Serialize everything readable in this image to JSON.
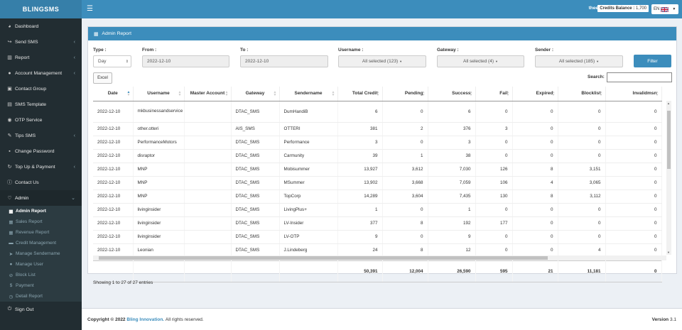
{
  "brand": "BLINGSMS",
  "sidebar": {
    "items": [
      {
        "label": "Dashboard",
        "icon": "dashboard-icon",
        "glyph": "◕",
        "chevron": false
      },
      {
        "label": "Send SMS",
        "icon": "share-icon",
        "glyph": "↪",
        "chevron": true
      },
      {
        "label": "Report",
        "icon": "bar-chart-icon",
        "glyph": "▥",
        "chevron": true
      },
      {
        "label": "Account Management",
        "icon": "user-icon",
        "glyph": "●",
        "chevron": true
      },
      {
        "label": "Contact Group",
        "icon": "address-book-icon",
        "glyph": "▣",
        "chevron": false
      },
      {
        "label": "SMS Template",
        "icon": "template-icon",
        "glyph": "▤",
        "chevron": false
      },
      {
        "label": "OTP Service",
        "icon": "otp-icon",
        "glyph": "◉",
        "chevron": false
      },
      {
        "label": "Tips SMS",
        "icon": "tips-icon",
        "glyph": "✎",
        "chevron": true
      },
      {
        "label": "Change Password",
        "icon": "lock-icon",
        "glyph": "▪",
        "chevron": false
      },
      {
        "label": "Top Up & Payment",
        "icon": "topup-icon",
        "glyph": "↻",
        "chevron": true
      },
      {
        "label": "Contact Us",
        "icon": "info-icon",
        "glyph": "ⓘ",
        "chevron": false
      },
      {
        "label": "Admin",
        "icon": "heart-icon",
        "glyph": "♡",
        "chevron": true
      }
    ],
    "admin_sub": [
      {
        "label": "Admin Report",
        "icon": "table-icon",
        "glyph": "▦"
      },
      {
        "label": "Sales Report",
        "icon": "table-icon",
        "glyph": "▦"
      },
      {
        "label": "Revenue Report",
        "icon": "table-icon",
        "glyph": "▦"
      },
      {
        "label": "Credit Management",
        "icon": "credit-card-icon",
        "glyph": "▬"
      },
      {
        "label": "Manage Sendername",
        "icon": "send-icon",
        "glyph": "➤"
      },
      {
        "label": "Manage User",
        "icon": "user-icon",
        "glyph": "●"
      },
      {
        "label": "Block List",
        "icon": "block-icon",
        "glyph": "⊘"
      },
      {
        "label": "Payment",
        "icon": "dollar-icon",
        "glyph": "$"
      },
      {
        "label": "Detail Report",
        "icon": "clock-icon",
        "glyph": "◷"
      }
    ],
    "signout": {
      "label": "Sign Out",
      "icon": "power-icon",
      "glyph": "⏻"
    }
  },
  "topbar": {
    "user": "thee",
    "credits_label": "Credits Balance :",
    "credits_value": "1,700",
    "lang": "EN"
  },
  "panel": {
    "title": "Admin Report"
  },
  "filters": {
    "type": {
      "label": "Type :",
      "value": "Day"
    },
    "from": {
      "label": "From :",
      "value": "2022-12-10"
    },
    "to": {
      "label": "To :",
      "value": "2022-12-10"
    },
    "username": {
      "label": "Username :",
      "value": "All selected (123)"
    },
    "gateway": {
      "label": "Gateway :",
      "value": "All selected (4)"
    },
    "sender": {
      "label": "Sender :",
      "value": "All selected (185)"
    },
    "filter_button": "Filter"
  },
  "excel_button": "Excel",
  "search_label": "Search:",
  "table": {
    "columns": [
      "Date",
      "Username",
      "Master Account",
      "Gateway",
      "Sendername",
      "Total Credit",
      "Pending",
      "Success",
      "Fail",
      "Expired",
      "Blocklist",
      "Invalidmsn"
    ],
    "rows": [
      [
        "2022-12-10",
        "mkbusinessandservice",
        "",
        "DTAC_SMS",
        "DumHandiB",
        "6",
        "0",
        "6",
        "0",
        "0",
        "0",
        "0"
      ],
      [
        "2022-12-10",
        "other.otteri",
        "",
        "AIS_SMS",
        "OTTERI",
        "381",
        "2",
        "376",
        "3",
        "0",
        "0",
        "0"
      ],
      [
        "2022-12-10",
        "PerformanceMotors",
        "",
        "DTAC_SMS",
        "Performance",
        "3",
        "0",
        "3",
        "0",
        "0",
        "0",
        "0"
      ],
      [
        "2022-12-10",
        "disraptor",
        "",
        "DTAC_SMS",
        "Carmunity",
        "39",
        "1",
        "38",
        "0",
        "0",
        "0",
        "0"
      ],
      [
        "2022-12-10",
        "MNP",
        "",
        "DTAC_SMS",
        "Mobisummer",
        "13,927",
        "3,612",
        "7,030",
        "126",
        "8",
        "3,151",
        "0"
      ],
      [
        "2022-12-10",
        "MNP",
        "",
        "DTAC_SMS",
        "MSummer",
        "13,902",
        "3,668",
        "7,059",
        "106",
        "4",
        "3,065",
        "0"
      ],
      [
        "2022-12-10",
        "MNP",
        "",
        "DTAC_SMS",
        "TopCorp",
        "14,289",
        "3,604",
        "7,435",
        "130",
        "8",
        "3,112",
        "0"
      ],
      [
        "2022-12-10",
        "livinginsider",
        "",
        "DTAC_SMS",
        "LivingPlus+",
        "1",
        "0",
        "1",
        "0",
        "0",
        "0",
        "0"
      ],
      [
        "2022-12-10",
        "livinginsider",
        "",
        "DTAC_SMS",
        "LV-Insider",
        "377",
        "8",
        "192",
        "177",
        "0",
        "0",
        "0"
      ],
      [
        "2022-12-10",
        "livinginsider",
        "",
        "DTAC_SMS",
        "LV-OTP",
        "9",
        "0",
        "9",
        "0",
        "0",
        "0",
        "0"
      ],
      [
        "2022-12-10",
        "Leonian",
        "",
        "DTAC_SMS",
        "J.Lindeberg",
        "24",
        "8",
        "12",
        "0",
        "0",
        "4",
        "0"
      ]
    ],
    "totals": [
      "",
      "",
      "",
      "",
      "",
      "50,391",
      "12,004",
      "26,590",
      "595",
      "21",
      "11,181",
      "0"
    ]
  },
  "info": "Showing 1 to 27 of 27 entries",
  "footer": {
    "copyright": "Copyright © 2022",
    "company": "Bling Innovation.",
    "rights": "All rights reserved.",
    "version_label": "Version",
    "version": "3.1"
  }
}
